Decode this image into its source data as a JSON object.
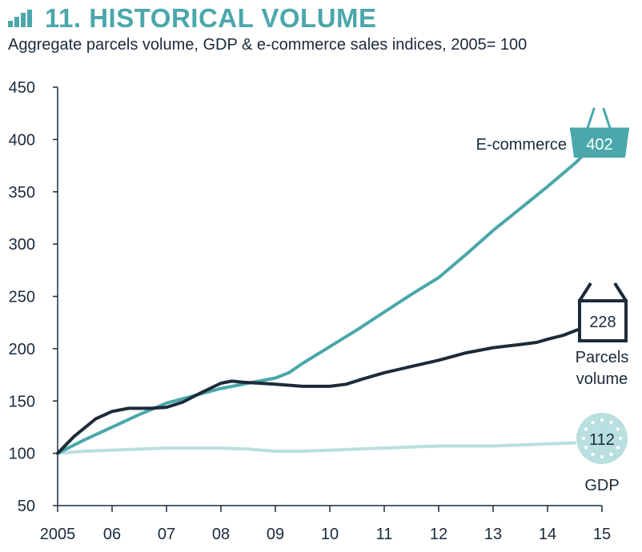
{
  "header": {
    "title": "11. HISTORICAL VOLUME",
    "subtitle": "Aggregate parcels volume, GDP & e-commerce sales indices, 2005= 100",
    "accent_color": "#4aa7ab"
  },
  "chart_data": {
    "type": "line",
    "title": "11. HISTORICAL VOLUME",
    "subtitle": "Aggregate parcels volume, GDP & e-commerce sales indices, 2005= 100",
    "xlabel": "",
    "ylabel": "",
    "xlim": [
      2005,
      2015
    ],
    "ylim": [
      50,
      450
    ],
    "x_ticks": [
      {
        "value": 2005,
        "label": "2005"
      },
      {
        "value": 2006,
        "label": "06"
      },
      {
        "value": 2007,
        "label": "07"
      },
      {
        "value": 2008,
        "label": "08"
      },
      {
        "value": 2009,
        "label": "09"
      },
      {
        "value": 2010,
        "label": "10"
      },
      {
        "value": 2011,
        "label": "11"
      },
      {
        "value": 2012,
        "label": "12"
      },
      {
        "value": 2013,
        "label": "13"
      },
      {
        "value": 2014,
        "label": "14"
      },
      {
        "value": 2015,
        "label": "15"
      }
    ],
    "y_ticks": [
      50,
      100,
      150,
      200,
      250,
      300,
      350,
      400,
      450
    ],
    "grid": false,
    "series": [
      {
        "name": "E-commerce",
        "end_label": "402",
        "color": "#4aa7ab",
        "icon": "basket-icon",
        "points": [
          [
            2005,
            100
          ],
          [
            2005.5,
            113
          ],
          [
            2006,
            125
          ],
          [
            2006.5,
            137
          ],
          [
            2007,
            148
          ],
          [
            2007.5,
            155
          ],
          [
            2008,
            162
          ],
          [
            2008.5,
            167
          ],
          [
            2009,
            172
          ],
          [
            2009.25,
            177
          ],
          [
            2009.5,
            186
          ],
          [
            2010,
            202
          ],
          [
            2010.5,
            218
          ],
          [
            2011,
            235
          ],
          [
            2011.5,
            252
          ],
          [
            2012,
            268
          ],
          [
            2012.5,
            290
          ],
          [
            2013,
            313
          ],
          [
            2013.5,
            334
          ],
          [
            2014,
            355
          ],
          [
            2014.5,
            377
          ],
          [
            2014.85,
            395
          ]
        ]
      },
      {
        "name": "Parcels volume",
        "end_label": "228",
        "color": "#1c2b3a",
        "icon": "box-icon",
        "points": [
          [
            2005,
            100
          ],
          [
            2005.3,
            116
          ],
          [
            2005.7,
            133
          ],
          [
            2006,
            140
          ],
          [
            2006.3,
            143
          ],
          [
            2006.7,
            143
          ],
          [
            2007,
            144
          ],
          [
            2007.3,
            149
          ],
          [
            2007.6,
            157
          ],
          [
            2008,
            167
          ],
          [
            2008.2,
            169
          ],
          [
            2008.4,
            168
          ],
          [
            2008.7,
            167
          ],
          [
            2009,
            166
          ],
          [
            2009.5,
            164
          ],
          [
            2010,
            164
          ],
          [
            2010.3,
            166
          ],
          [
            2010.6,
            171
          ],
          [
            2011,
            177
          ],
          [
            2011.5,
            183
          ],
          [
            2012,
            189
          ],
          [
            2012.5,
            196
          ],
          [
            2013,
            201
          ],
          [
            2013.5,
            204
          ],
          [
            2013.8,
            206
          ],
          [
            2014,
            209
          ],
          [
            2014.3,
            213
          ],
          [
            2014.55,
            218
          ]
        ]
      },
      {
        "name": "GDP",
        "end_label": "112",
        "color": "#b9dfe0",
        "icon": "coin-icon",
        "points": [
          [
            2005,
            100
          ],
          [
            2005.5,
            102
          ],
          [
            2006,
            103
          ],
          [
            2006.5,
            104
          ],
          [
            2007,
            105
          ],
          [
            2007.5,
            105
          ],
          [
            2008,
            105
          ],
          [
            2008.5,
            104
          ],
          [
            2009,
            102
          ],
          [
            2009.5,
            102
          ],
          [
            2010,
            103
          ],
          [
            2010.5,
            104
          ],
          [
            2011,
            105
          ],
          [
            2011.5,
            106
          ],
          [
            2012,
            107
          ],
          [
            2012.5,
            107
          ],
          [
            2013,
            107
          ],
          [
            2013.5,
            108
          ],
          [
            2014,
            109
          ],
          [
            2014.5,
            110
          ]
        ]
      }
    ]
  }
}
